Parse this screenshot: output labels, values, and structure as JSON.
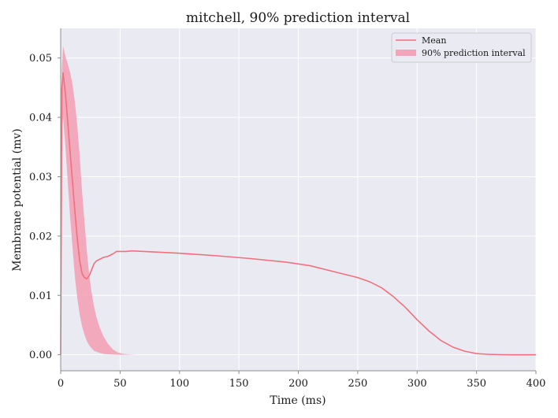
{
  "chart_data": {
    "type": "line",
    "title": "mitchell, 90% prediction interval",
    "xlabel": "Time (ms)",
    "ylabel": "Membrane potential (mv)",
    "xlim": [
      0,
      400
    ],
    "ylim": [
      -0.0027,
      0.055
    ],
    "x_ticks": [
      0,
      50,
      100,
      150,
      200,
      250,
      300,
      350,
      400
    ],
    "y_ticks": [
      0.0,
      0.01,
      0.02,
      0.03,
      0.04,
      0.05
    ],
    "x_tick_labels": [
      "0",
      "50",
      "100",
      "150",
      "200",
      "250",
      "300",
      "350",
      "400"
    ],
    "y_tick_labels": [
      "0.00",
      "0.01",
      "0.02",
      "0.03",
      "0.04",
      "0.05"
    ],
    "grid": true,
    "legend_position": "top-right",
    "colors": {
      "background": "#eaeaf2",
      "grid": "#ffffff",
      "mean_line": "#f0707e",
      "band_fill": "#f2a5b8",
      "axis_line": "#8c8c8c"
    },
    "series": [
      {
        "name": "Mean",
        "kind": "line",
        "x": [
          0,
          1,
          2,
          4,
          6,
          8,
          10,
          12,
          14,
          16,
          18,
          20,
          22,
          24,
          26,
          28,
          30,
          33,
          36,
          40,
          44,
          47,
          50,
          55,
          60,
          70,
          80,
          100,
          130,
          160,
          190,
          210,
          230,
          250,
          260,
          270,
          280,
          290,
          300,
          310,
          320,
          330,
          340,
          350,
          360,
          370,
          380,
          400
        ],
        "y": [
          0.0,
          0.045,
          0.0475,
          0.044,
          0.039,
          0.034,
          0.029,
          0.024,
          0.0195,
          0.0158,
          0.0137,
          0.013,
          0.0128,
          0.0133,
          0.0143,
          0.0153,
          0.0158,
          0.0161,
          0.0164,
          0.0166,
          0.017,
          0.0174,
          0.0174,
          0.0174,
          0.0175,
          0.0174,
          0.0173,
          0.0171,
          0.0167,
          0.0162,
          0.0156,
          0.015,
          0.014,
          0.013,
          0.0123,
          0.0113,
          0.0098,
          0.008,
          0.0059,
          0.004,
          0.0024,
          0.0013,
          0.0006,
          0.0002,
          7e-05,
          2e-05,
          0.0,
          0.0
        ]
      },
      {
        "name": "90% prediction interval",
        "kind": "band",
        "x": [
          0,
          1,
          2,
          4,
          6,
          8,
          10,
          12,
          14,
          16,
          18,
          20,
          22,
          24,
          26,
          28,
          30,
          33,
          36,
          40,
          44,
          48,
          52,
          56,
          60,
          65,
          70
        ],
        "upper": [
          0.0,
          0.048,
          0.052,
          0.0503,
          0.049,
          0.0475,
          0.0455,
          0.0425,
          0.0385,
          0.0335,
          0.0275,
          0.0225,
          0.0175,
          0.0135,
          0.0105,
          0.0082,
          0.0064,
          0.0045,
          0.0031,
          0.0018,
          0.0009,
          0.0004,
          0.00018,
          8e-05,
          4e-05,
          1e-05,
          0.0
        ],
        "lower": [
          0.0,
          0.038,
          0.04,
          0.035,
          0.029,
          0.023,
          0.018,
          0.013,
          0.0095,
          0.0068,
          0.0048,
          0.0034,
          0.0023,
          0.0016,
          0.0011,
          0.0007,
          0.0005,
          0.0003,
          0.00015,
          7e-05,
          3e-05,
          1e-05,
          0.0,
          0.0,
          0.0,
          0.0,
          0.0
        ]
      }
    ]
  }
}
